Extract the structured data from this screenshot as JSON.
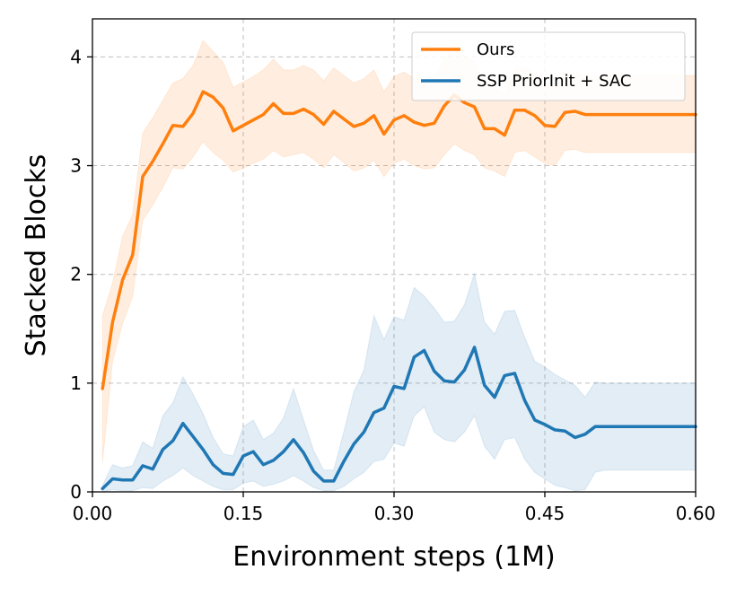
{
  "chart_data": {
    "type": "line",
    "title": "",
    "xlabel": "Environment steps (1M)",
    "ylabel": "Stacked Blocks",
    "xlim": [
      0.0,
      0.6
    ],
    "ylim": [
      0.0,
      4.35
    ],
    "grid": true,
    "legend_position": "top-right",
    "xticks": [
      0.0,
      0.15,
      0.3,
      0.45,
      0.6
    ],
    "xtick_labels": [
      "0.00",
      "0.15",
      "0.30",
      "0.45",
      "0.60"
    ],
    "yticks": [
      0,
      1,
      2,
      3,
      4
    ],
    "ytick_labels": [
      "0",
      "1",
      "2",
      "3",
      "4"
    ],
    "x": [
      0.01,
      0.02,
      0.03,
      0.04,
      0.05,
      0.06,
      0.07,
      0.08,
      0.09,
      0.1,
      0.11,
      0.12,
      0.13,
      0.14,
      0.15,
      0.16,
      0.17,
      0.18,
      0.19,
      0.2,
      0.21,
      0.22,
      0.23,
      0.24,
      0.25,
      0.26,
      0.27,
      0.28,
      0.29,
      0.3,
      0.31,
      0.32,
      0.33,
      0.34,
      0.35,
      0.36,
      0.37,
      0.38,
      0.39,
      0.4,
      0.41,
      0.42,
      0.43,
      0.44,
      0.45,
      0.46,
      0.47,
      0.48,
      0.49,
      0.5,
      0.51,
      0.52,
      0.53,
      0.54,
      0.55,
      0.56,
      0.57,
      0.58,
      0.59,
      0.6
    ],
    "series": [
      {
        "name": "Ours",
        "color": "#ff7f0e",
        "values": [
          0.95,
          1.56,
          1.95,
          2.18,
          2.9,
          3.04,
          3.2,
          3.37,
          3.36,
          3.48,
          3.68,
          3.63,
          3.53,
          3.32,
          3.37,
          3.42,
          3.47,
          3.57,
          3.48,
          3.48,
          3.52,
          3.47,
          3.38,
          3.5,
          3.43,
          3.36,
          3.39,
          3.46,
          3.29,
          3.42,
          3.46,
          3.4,
          3.37,
          3.39,
          3.55,
          3.65,
          3.58,
          3.54,
          3.34,
          3.34,
          3.28,
          3.51,
          3.51,
          3.46,
          3.37,
          3.36,
          3.49,
          3.5,
          3.47,
          3.47,
          3.47,
          3.47,
          3.47,
          3.47,
          3.47,
          3.47,
          3.47,
          3.47,
          3.47,
          3.47
        ],
        "lower": [
          0.27,
          1.2,
          1.55,
          1.8,
          2.5,
          2.64,
          2.8,
          2.98,
          2.97,
          3.08,
          3.22,
          3.12,
          3.05,
          2.94,
          2.98,
          3.02,
          3.06,
          3.14,
          3.08,
          3.1,
          3.12,
          3.06,
          2.98,
          3.1,
          3.03,
          2.95,
          2.98,
          3.05,
          2.9,
          3.02,
          3.06,
          3.0,
          2.97,
          2.98,
          3.1,
          3.2,
          3.14,
          3.1,
          2.98,
          2.95,
          2.9,
          3.12,
          3.14,
          3.08,
          3.02,
          3.0,
          3.14,
          3.15,
          3.12,
          3.12,
          3.12,
          3.12,
          3.12,
          3.12,
          3.12,
          3.12,
          3.12,
          3.12,
          3.12,
          3.12
        ],
        "upper": [
          1.62,
          1.92,
          2.35,
          2.55,
          3.3,
          3.44,
          3.6,
          3.76,
          3.8,
          3.92,
          4.15,
          4.05,
          3.95,
          3.72,
          3.77,
          3.82,
          3.88,
          3.98,
          3.88,
          3.88,
          3.92,
          3.88,
          3.78,
          3.9,
          3.83,
          3.76,
          3.8,
          3.88,
          3.68,
          3.82,
          3.86,
          3.8,
          3.77,
          3.8,
          3.98,
          4.08,
          4.0,
          3.96,
          3.72,
          3.72,
          3.66,
          3.9,
          3.9,
          3.85,
          3.74,
          3.73,
          3.86,
          3.86,
          3.83,
          3.83,
          3.83,
          3.83,
          3.83,
          3.83,
          3.83,
          3.83,
          3.83,
          3.83,
          3.83,
          3.83
        ]
      },
      {
        "name": "SSP PriorInit + SAC",
        "color": "#1f77b4",
        "values": [
          0.03,
          0.12,
          0.11,
          0.11,
          0.24,
          0.21,
          0.39,
          0.47,
          0.63,
          0.51,
          0.39,
          0.25,
          0.17,
          0.16,
          0.33,
          0.37,
          0.25,
          0.29,
          0.37,
          0.48,
          0.36,
          0.19,
          0.1,
          0.1,
          0.28,
          0.44,
          0.55,
          0.73,
          0.77,
          0.97,
          0.95,
          1.24,
          1.3,
          1.11,
          1.02,
          1.01,
          1.12,
          1.33,
          0.98,
          0.87,
          1.07,
          1.09,
          0.84,
          0.66,
          0.62,
          0.57,
          0.56,
          0.5,
          0.53,
          0.6,
          0.6,
          0.6,
          0.6,
          0.6,
          0.6,
          0.6,
          0.6,
          0.6,
          0.6,
          0.6
        ],
        "lower": [
          0.0,
          0.02,
          0.01,
          0.01,
          0.04,
          0.03,
          0.1,
          0.15,
          0.22,
          0.15,
          0.1,
          0.05,
          0.02,
          0.02,
          0.08,
          0.1,
          0.05,
          0.07,
          0.1,
          0.15,
          0.1,
          0.04,
          0.01,
          0.01,
          0.05,
          0.12,
          0.18,
          0.28,
          0.3,
          0.45,
          0.42,
          0.7,
          0.78,
          0.55,
          0.48,
          0.46,
          0.55,
          0.7,
          0.42,
          0.3,
          0.48,
          0.5,
          0.3,
          0.18,
          0.12,
          0.06,
          0.04,
          0.01,
          0.02,
          0.18,
          0.2,
          0.2,
          0.2,
          0.2,
          0.2,
          0.2,
          0.2,
          0.2,
          0.2,
          0.2
        ],
        "upper": [
          0.06,
          0.25,
          0.22,
          0.24,
          0.46,
          0.4,
          0.7,
          0.82,
          1.06,
          0.9,
          0.72,
          0.5,
          0.35,
          0.33,
          0.6,
          0.66,
          0.48,
          0.54,
          0.68,
          0.95,
          0.66,
          0.38,
          0.2,
          0.2,
          0.55,
          0.92,
          1.12,
          1.62,
          1.4,
          1.61,
          1.58,
          1.88,
          1.8,
          1.69,
          1.56,
          1.57,
          1.72,
          2.01,
          1.56,
          1.45,
          1.66,
          1.67,
          1.42,
          1.2,
          1.15,
          1.08,
          1.03,
          0.98,
          0.87,
          1.01,
          1.0,
          1.0,
          1.0,
          1.0,
          1.0,
          1.0,
          1.0,
          1.0,
          1.0,
          1.0
        ]
      }
    ]
  }
}
